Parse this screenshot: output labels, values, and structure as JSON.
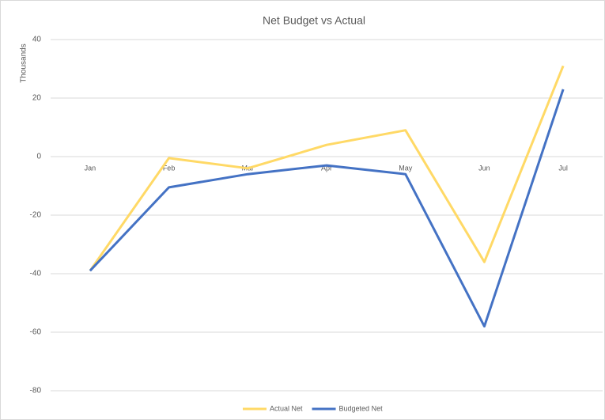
{
  "chart_data": {
    "type": "line",
    "title": "Net Budget vs Actual",
    "y_label": "Thousands",
    "categories": [
      "Jan",
      "Feb",
      "Mar",
      "Apr",
      "May",
      "Jun",
      "Jul"
    ],
    "series": [
      {
        "name": "Actual Net",
        "color": "#ffd966",
        "values": [
          -39,
          -0.5,
          -4,
          4,
          9,
          -36,
          31
        ]
      },
      {
        "name": "Budgeted Net",
        "color": "#4472c4",
        "values": [
          -39,
          -10.5,
          -6,
          -3,
          -6,
          -58,
          23
        ]
      }
    ],
    "ylim": [
      -80,
      40
    ],
    "yticks": [
      -80,
      -60,
      -40,
      -20,
      0,
      20,
      40
    ],
    "grid": true,
    "legend": "bottom"
  }
}
